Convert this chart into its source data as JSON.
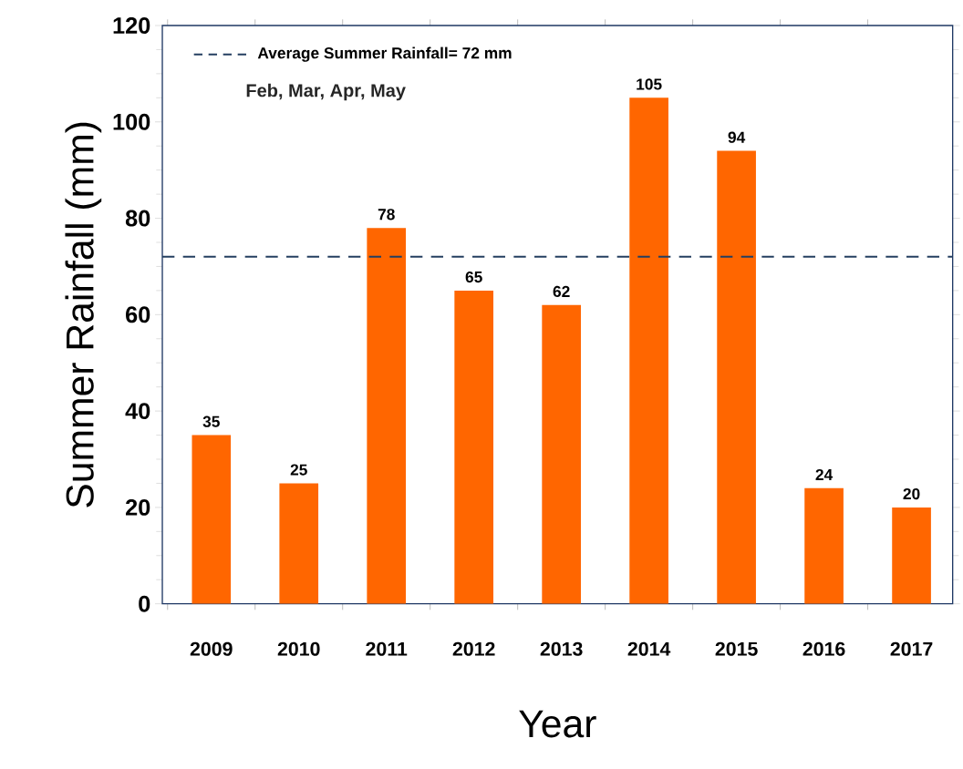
{
  "chart_data": {
    "type": "bar",
    "xlabel": "Year",
    "ylabel": "Summer Rainfall (mm)",
    "categories": [
      "2009",
      "2010",
      "2011",
      "2012",
      "2013",
      "2014",
      "2015",
      "2016",
      "2017"
    ],
    "values": [
      35,
      25,
      78,
      65,
      62,
      105,
      94,
      24,
      20
    ],
    "color": "#ff6600",
    "ylim": [
      0,
      120
    ],
    "yticks": [
      0,
      20,
      40,
      60,
      80,
      100,
      120
    ],
    "data_labels": true,
    "ref_lines": [
      {
        "axis": "y",
        "value": 72,
        "label": "Average Summer Rainfall= 72 mm",
        "color": "#243f60",
        "line_style": "dashed"
      }
    ],
    "annotations": [
      "Feb, Mar, Apr, May"
    ]
  }
}
